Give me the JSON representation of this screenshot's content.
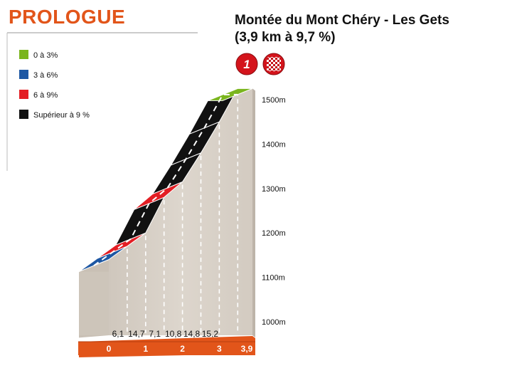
{
  "header": {
    "stage_label": "PROLOGUE",
    "title_line1": "Montée du Mont Chéry - Les Gets",
    "title_line2": "(3,9 km à 9,7 %)",
    "badge_category": "1",
    "badge_finish_icon": "checkered-flag-icon"
  },
  "colors": {
    "accent": "#e2551a",
    "grade_0_3": "#7ab51d",
    "grade_3_6": "#1d57a3",
    "grade_6_9": "#e31e24",
    "grade_over_9": "#111111",
    "terrain": "#d9d2c9"
  },
  "legend": [
    {
      "label": "0 à 3%",
      "color": "#7ab51d"
    },
    {
      "label": "3 à 6%",
      "color": "#1d57a3"
    },
    {
      "label": "6 à 9%",
      "color": "#e31e24"
    },
    {
      "label": "Supérieur à 9 %",
      "color": "#111111"
    }
  ],
  "chart_data": {
    "type": "area",
    "x_unit": "km",
    "y_unit": "m",
    "xlim": [
      0,
      3.9
    ],
    "ylim": [
      1000,
      1560
    ],
    "y_ticks": [
      {
        "value": 1000,
        "label": "1000m"
      },
      {
        "value": 1100,
        "label": "1100m"
      },
      {
        "value": 1200,
        "label": "1200m"
      },
      {
        "value": 1300,
        "label": "1300m"
      },
      {
        "value": 1400,
        "label": "1400m"
      },
      {
        "value": 1500,
        "label": "1500m"
      }
    ],
    "x_ticks": [
      {
        "value": 0,
        "label": "0"
      },
      {
        "value": 1,
        "label": "1"
      },
      {
        "value": 2,
        "label": "2"
      },
      {
        "value": 3,
        "label": "3"
      },
      {
        "value": 3.9,
        "label": "3,9"
      }
    ],
    "segments": [
      {
        "x0": 0.0,
        "x1": 0.5,
        "y0": 1140,
        "y1": 1170,
        "grade": 6.1,
        "grade_label": "6,1",
        "color": "#1d57a3"
      },
      {
        "x0": 0.5,
        "x1": 1.0,
        "y0": 1170,
        "y1": 1200,
        "grade": 14.7,
        "grade_label": "14,7",
        "color": "#e31e24"
      },
      {
        "x0": 1.0,
        "x1": 1.5,
        "y0": 1200,
        "y1": 1280,
        "grade": 7.1,
        "grade_label": "7,1",
        "color": "#111111"
      },
      {
        "x0": 1.5,
        "x1": 2.0,
        "y0": 1280,
        "y1": 1315,
        "grade": 10.8,
        "grade_label": "10,8",
        "color": "#e31e24"
      },
      {
        "x0": 2.0,
        "x1": 2.5,
        "y0": 1315,
        "y1": 1380,
        "grade": 14.8,
        "grade_label": "14,8",
        "color": "#111111"
      },
      {
        "x0": 2.5,
        "x1": 3.0,
        "y0": 1380,
        "y1": 1450,
        "grade": 15.2,
        "grade_label": "15,2",
        "color": "#111111"
      },
      {
        "x0": 3.0,
        "x1": 3.5,
        "y0": 1450,
        "y1": 1525,
        "grade": null,
        "grade_label": "",
        "color": "#111111"
      },
      {
        "x0": 3.5,
        "x1": 3.9,
        "y0": 1525,
        "y1": 1525,
        "grade": null,
        "grade_label": "",
        "color": "#7ab51d"
      }
    ]
  }
}
